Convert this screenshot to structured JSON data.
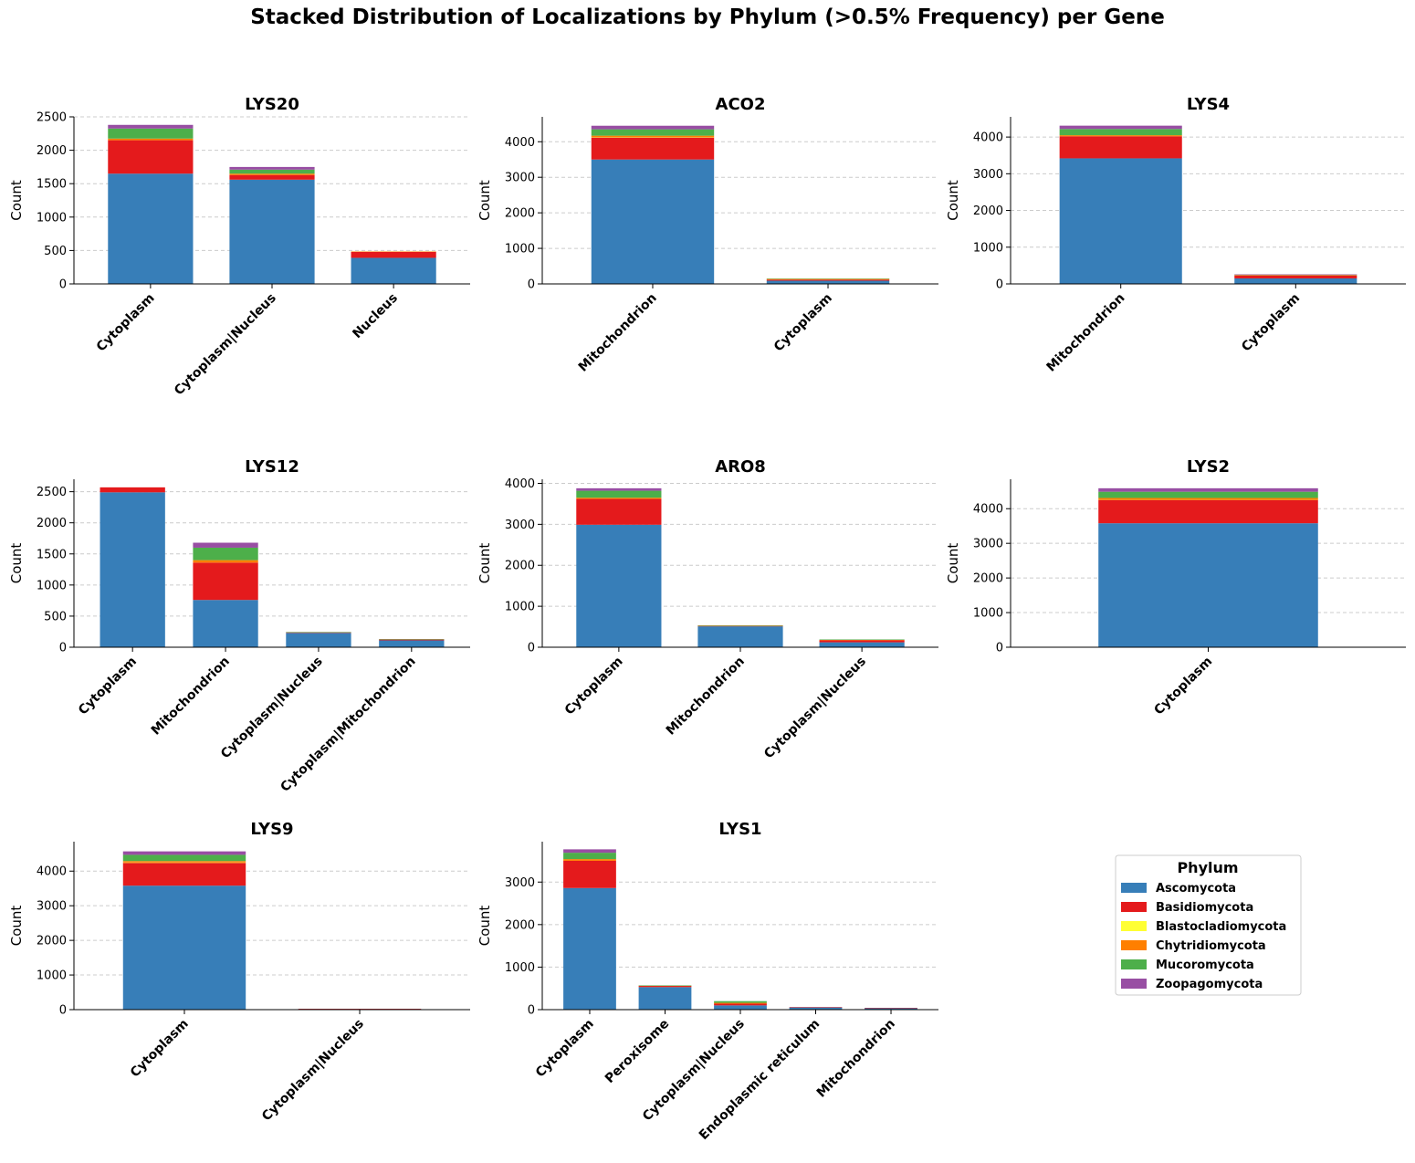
{
  "title": "Stacked Distribution of Localizations by Phylum (>0.5% Frequency) per Gene",
  "phyla": [
    {
      "name": "Ascomycota",
      "color": "#377eb8"
    },
    {
      "name": "Basidiomycota",
      "color": "#e41a1c"
    },
    {
      "name": "Blastocladiomycota",
      "color": "#ffff33"
    },
    {
      "name": "Chytridiomycota",
      "color": "#ff7f00"
    },
    {
      "name": "Mucoromycota",
      "color": "#4daf4a"
    },
    {
      "name": "Zoopagomycota",
      "color": "#984ea3"
    }
  ],
  "legend": {
    "title": "Phylum",
    "placement": "bottom-right"
  },
  "chart_data": [
    {
      "type": "bar",
      "stacked": true,
      "title": "LYS20",
      "ylabel": "Count",
      "ylim": [
        0,
        2500
      ],
      "yticks": [
        0,
        500,
        1000,
        1500,
        2000,
        2500
      ],
      "categories": [
        "Cytoplasm",
        "Cytoplasm|Nucleus",
        "Nucleus"
      ],
      "series": [
        {
          "name": "Ascomycota",
          "values": [
            1650,
            1560,
            390
          ]
        },
        {
          "name": "Basidiomycota",
          "values": [
            500,
            70,
            90
          ]
        },
        {
          "name": "Blastocladiomycota",
          "values": [
            0,
            0,
            0
          ]
        },
        {
          "name": "Chytridiomycota",
          "values": [
            25,
            20,
            5
          ]
        },
        {
          "name": "Mucoromycota",
          "values": [
            150,
            60,
            0
          ]
        },
        {
          "name": "Zoopagomycota",
          "values": [
            55,
            40,
            0
          ]
        }
      ]
    },
    {
      "type": "bar",
      "stacked": true,
      "title": "ACO2",
      "ylabel": "Count",
      "ylim": [
        0,
        4700
      ],
      "yticks": [
        0,
        1000,
        2000,
        3000,
        4000
      ],
      "categories": [
        "Mitochondrion",
        "Cytoplasm"
      ],
      "series": [
        {
          "name": "Ascomycota",
          "values": [
            3500,
            90
          ]
        },
        {
          "name": "Basidiomycota",
          "values": [
            620,
            30
          ]
        },
        {
          "name": "Blastocladiomycota",
          "values": [
            10,
            0
          ]
        },
        {
          "name": "Chytridiomycota",
          "values": [
            40,
            20
          ]
        },
        {
          "name": "Mucoromycota",
          "values": [
            180,
            10
          ]
        },
        {
          "name": "Zoopagomycota",
          "values": [
            100,
            0
          ]
        }
      ]
    },
    {
      "type": "bar",
      "stacked": true,
      "title": "LYS4",
      "ylabel": "Count",
      "ylim": [
        0,
        4550
      ],
      "yticks": [
        0,
        1000,
        2000,
        3000,
        4000
      ],
      "categories": [
        "Mitochondrion",
        "Cytoplasm"
      ],
      "series": [
        {
          "name": "Ascomycota",
          "values": [
            3420,
            150
          ]
        },
        {
          "name": "Basidiomycota",
          "values": [
            600,
            80
          ]
        },
        {
          "name": "Blastocladiomycota",
          "values": [
            0,
            0
          ]
        },
        {
          "name": "Chytridiomycota",
          "values": [
            30,
            15
          ]
        },
        {
          "name": "Mucoromycota",
          "values": [
            170,
            10
          ]
        },
        {
          "name": "Zoopagomycota",
          "values": [
            90,
            5
          ]
        }
      ]
    },
    {
      "type": "bar",
      "stacked": true,
      "title": "LYS12",
      "ylabel": "Count",
      "ylim": [
        0,
        2700
      ],
      "yticks": [
        0,
        500,
        1000,
        1500,
        2000,
        2500
      ],
      "categories": [
        "Cytoplasm",
        "Mitochondrion",
        "Cytoplasm|Nucleus",
        "Cytoplasm|Mitochondrion"
      ],
      "series": [
        {
          "name": "Ascomycota",
          "values": [
            2490,
            760,
            230,
            110
          ]
        },
        {
          "name": "Basidiomycota",
          "values": [
            80,
            600,
            10,
            15
          ]
        },
        {
          "name": "Blastocladiomycota",
          "values": [
            0,
            0,
            0,
            0
          ]
        },
        {
          "name": "Chytridiomycota",
          "values": [
            0,
            40,
            0,
            0
          ]
        },
        {
          "name": "Mucoromycota",
          "values": [
            0,
            200,
            5,
            5
          ]
        },
        {
          "name": "Zoopagomycota",
          "values": [
            0,
            80,
            0,
            0
          ]
        }
      ]
    },
    {
      "type": "bar",
      "stacked": true,
      "title": "ARO8",
      "ylabel": "Count",
      "ylim": [
        0,
        4100
      ],
      "yticks": [
        0,
        1000,
        2000,
        3000,
        4000
      ],
      "categories": [
        "Cytoplasm",
        "Mitochondrion",
        "Cytoplasm|Nucleus"
      ],
      "series": [
        {
          "name": "Ascomycota",
          "values": [
            2990,
            510,
            120
          ]
        },
        {
          "name": "Basidiomycota",
          "values": [
            630,
            10,
            50
          ]
        },
        {
          "name": "Blastocladiomycota",
          "values": [
            0,
            0,
            0
          ]
        },
        {
          "name": "Chytridiomycota",
          "values": [
            30,
            10,
            10
          ]
        },
        {
          "name": "Mucoromycota",
          "values": [
            170,
            5,
            10
          ]
        },
        {
          "name": "Zoopagomycota",
          "values": [
            60,
            0,
            0
          ]
        }
      ]
    },
    {
      "type": "bar",
      "stacked": true,
      "title": "LYS2",
      "ylabel": "Count",
      "ylim": [
        0,
        4850
      ],
      "yticks": [
        0,
        1000,
        2000,
        3000,
        4000
      ],
      "categories": [
        "Cytoplasm"
      ],
      "series": [
        {
          "name": "Ascomycota",
          "values": [
            3580
          ]
        },
        {
          "name": "Basidiomycota",
          "values": [
            680
          ]
        },
        {
          "name": "Blastocladiomycota",
          "values": [
            10
          ]
        },
        {
          "name": "Chytridiomycota",
          "values": [
            40
          ]
        },
        {
          "name": "Mucoromycota",
          "values": [
            180
          ]
        },
        {
          "name": "Zoopagomycota",
          "values": [
            100
          ]
        }
      ]
    },
    {
      "type": "bar",
      "stacked": true,
      "title": "LYS9",
      "ylabel": "Count",
      "ylim": [
        0,
        4850
      ],
      "yticks": [
        0,
        1000,
        2000,
        3000,
        4000
      ],
      "categories": [
        "Cytoplasm",
        "Cytoplasm|Nucleus"
      ],
      "series": [
        {
          "name": "Ascomycota",
          "values": [
            3580,
            20
          ]
        },
        {
          "name": "Basidiomycota",
          "values": [
            660,
            3
          ]
        },
        {
          "name": "Blastocladiomycota",
          "values": [
            10,
            0
          ]
        },
        {
          "name": "Chytridiomycota",
          "values": [
            40,
            0
          ]
        },
        {
          "name": "Mucoromycota",
          "values": [
            180,
            0
          ]
        },
        {
          "name": "Zoopagomycota",
          "values": [
            100,
            0
          ]
        }
      ]
    },
    {
      "type": "bar",
      "stacked": true,
      "title": "LYS1",
      "ylabel": "Count",
      "ylim": [
        0,
        3950
      ],
      "yticks": [
        0,
        1000,
        2000,
        3000
      ],
      "categories": [
        "Cytoplasm",
        "Peroxisome",
        "Cytoplasm|Nucleus",
        "Endoplasmic reticulum",
        "Mitochondrion"
      ],
      "series": [
        {
          "name": "Ascomycota",
          "values": [
            2860,
            530,
            100,
            55,
            40
          ]
        },
        {
          "name": "Basidiomycota",
          "values": [
            640,
            30,
            40,
            5,
            3
          ]
        },
        {
          "name": "Blastocladiomycota",
          "values": [
            0,
            0,
            0,
            0,
            0
          ]
        },
        {
          "name": "Chytridiomycota",
          "values": [
            40,
            5,
            20,
            0,
            0
          ]
        },
        {
          "name": "Mucoromycota",
          "values": [
            150,
            5,
            40,
            0,
            0
          ]
        },
        {
          "name": "Zoopagomycota",
          "values": [
            80,
            0,
            0,
            0,
            0
          ]
        }
      ]
    }
  ]
}
